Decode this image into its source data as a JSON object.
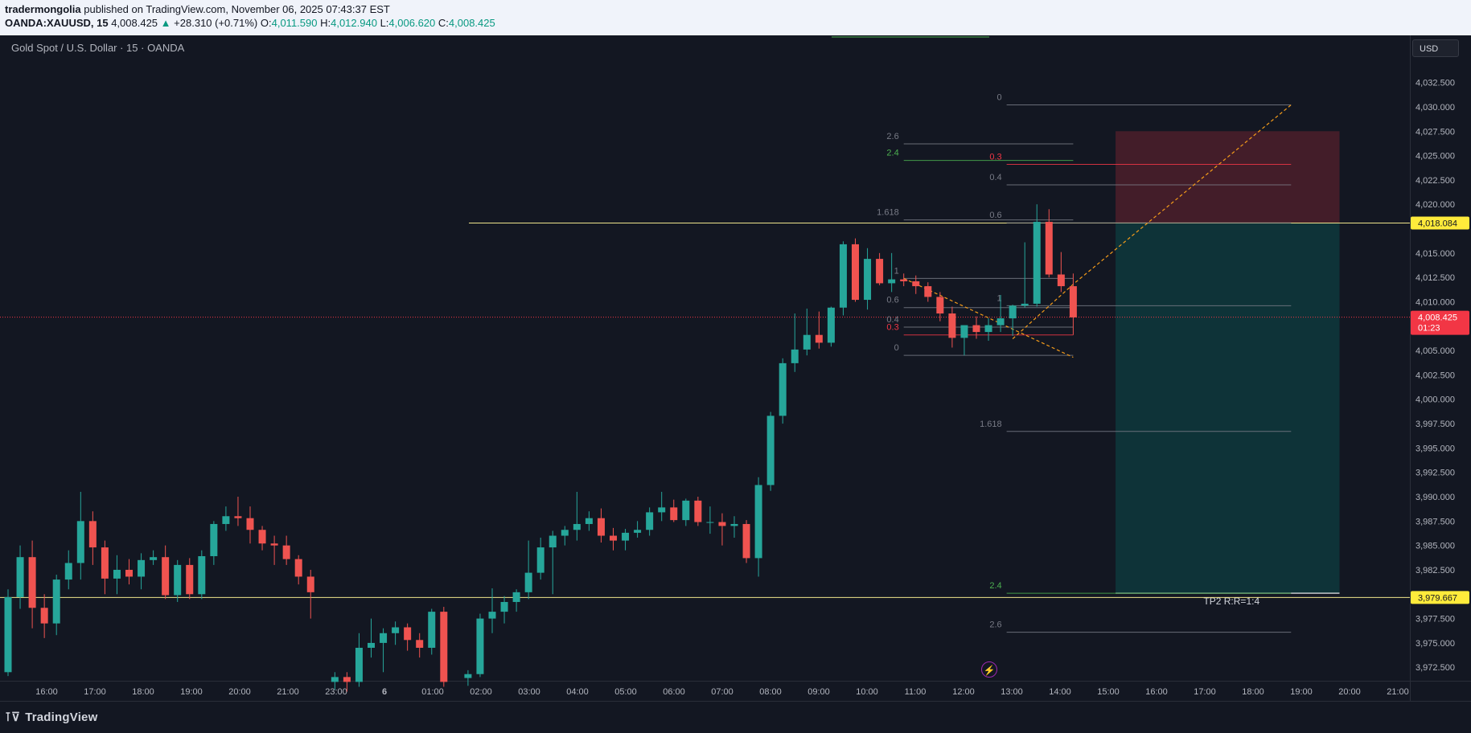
{
  "header": {
    "publisher": "tradermongolia",
    "published_text": "published on TradingView.com, November 06, 2025 07:43:37 EST",
    "symbol": "OANDA:XAUUSD, 15",
    "last": "4,008.425",
    "change_arrow": "▲",
    "change": "+28.310 (+0.71%)",
    "o_label": "O:",
    "open": "4,011.590",
    "h_label": "H:",
    "high": "4,012.940",
    "l_label": "L:",
    "low": "4,006.620",
    "c_label": "C:",
    "close": "4,008.425"
  },
  "chart_title": "Gold Spot / U.S. Dollar · 15 · OANDA",
  "currency_button": "USD",
  "footer": {
    "logo_text": "TradingView",
    "logo_mark": "⊺⊽",
    "flash_icon": "⚡"
  },
  "colors": {
    "background": "#131722",
    "up": "#26a69a",
    "down": "#ef5350",
    "level_line": "#f0e68c",
    "price_tag": "#ffeb3b",
    "current_tag": "#f23645",
    "risk_zone": "#f23645",
    "reward_zone": "#00897b",
    "fib_orange": "#f59c1a",
    "fib_green": "#4caf50",
    "fib_red": "#f23645",
    "fib_gray": "#787b86"
  },
  "chart_data": {
    "type": "candlestick",
    "title": "Gold Spot / U.S. Dollar · 15 · OANDA",
    "timeframe": "15",
    "x_tick_labels": [
      "16:00",
      "17:00",
      "18:00",
      "19:00",
      "20:00",
      "21:00",
      "23:00",
      "6",
      "01:00",
      "02:00",
      "03:00",
      "04:00",
      "05:00",
      "06:00",
      "07:00",
      "08:00",
      "09:00",
      "10:00",
      "11:00",
      "12:00",
      "13:00",
      "14:00",
      "15:00",
      "16:00",
      "17:00",
      "18:00",
      "19:00",
      "20:00",
      "21:00"
    ],
    "y_tick_values": [
      3972.5,
      3975,
      3977.5,
      3980,
      3982.5,
      3985,
      3987.5,
      3990,
      3992.5,
      3995,
      3997.5,
      4000,
      4002.5,
      4005,
      4007.5,
      4010,
      4012.5,
      4015,
      4017.5,
      4020,
      4022.5,
      4025,
      4027.5,
      4030,
      4032.5
    ],
    "y_tick_labels": [
      "3,972.500",
      "3,975.000",
      "3,977.500",
      "",
      "3,982.500",
      "3,985.000",
      "3,987.500",
      "3,990.000",
      "3,992.500",
      "3,995.000",
      "3,997.500",
      "4,000.000",
      "4,002.500",
      "4,005.000",
      "",
      "4,010.000",
      "4,012.500",
      "4,015.000",
      "",
      "4,020.000",
      "4,022.500",
      "4,025.000",
      "4,027.500",
      "4,030.000",
      "4,032.500"
    ],
    "ylim": [
      3971.2,
      4034.2
    ],
    "candles": [
      {
        "t": 0,
        "o": 3972,
        "h": 3980.5,
        "l": 3971.6,
        "c": 3979.7
      },
      {
        "t": 1,
        "o": 3979.7,
        "h": 3985,
        "l": 3978.5,
        "c": 3983.8
      },
      {
        "t": 2,
        "o": 3983.8,
        "h": 3985.5,
        "l": 3976.5,
        "c": 3978.6
      },
      {
        "t": 3,
        "o": 3978.6,
        "h": 3980,
        "l": 3975.5,
        "c": 3977
      },
      {
        "t": 4,
        "o": 3977,
        "h": 3982,
        "l": 3975.8,
        "c": 3981.5
      },
      {
        "t": 5,
        "o": 3981.5,
        "h": 3984.5,
        "l": 3980.5,
        "c": 3983.2
      },
      {
        "t": 6,
        "o": 3983.2,
        "h": 3990.5,
        "l": 3981.5,
        "c": 3987.5
      },
      {
        "t": 7,
        "o": 3987.5,
        "h": 3988.5,
        "l": 3983,
        "c": 3984.8
      },
      {
        "t": 8,
        "o": 3984.8,
        "h": 3985.5,
        "l": 3980,
        "c": 3981.6
      },
      {
        "t": 9,
        "o": 3981.6,
        "h": 3984,
        "l": 3980,
        "c": 3982.5
      },
      {
        "t": 10,
        "o": 3982.5,
        "h": 3983.6,
        "l": 3981,
        "c": 3981.8
      },
      {
        "t": 11,
        "o": 3981.8,
        "h": 3984.2,
        "l": 3980.5,
        "c": 3983.5
      },
      {
        "t": 12,
        "o": 3983.5,
        "h": 3984.5,
        "l": 3983,
        "c": 3983.8
      },
      {
        "t": 13,
        "o": 3983.8,
        "h": 3985,
        "l": 3979.5,
        "c": 3979.9
      },
      {
        "t": 14,
        "o": 3979.9,
        "h": 3983.5,
        "l": 3979.2,
        "c": 3983
      },
      {
        "t": 15,
        "o": 3983,
        "h": 3983.7,
        "l": 3979.5,
        "c": 3980
      },
      {
        "t": 16,
        "o": 3980,
        "h": 3984.5,
        "l": 3979.5,
        "c": 3983.9
      },
      {
        "t": 17,
        "o": 3983.9,
        "h": 3987.5,
        "l": 3983,
        "c": 3987.2
      },
      {
        "t": 18,
        "o": 3987.2,
        "h": 3989,
        "l": 3986.5,
        "c": 3988
      },
      {
        "t": 19,
        "o": 3988,
        "h": 3990,
        "l": 3987,
        "c": 3987.8
      },
      {
        "t": 20,
        "o": 3987.8,
        "h": 3989,
        "l": 3985.2,
        "c": 3986.6
      },
      {
        "t": 21,
        "o": 3986.6,
        "h": 3987,
        "l": 3984.5,
        "c": 3985.2
      },
      {
        "t": 22,
        "o": 3985.2,
        "h": 3986,
        "l": 3983,
        "c": 3985
      },
      {
        "t": 23,
        "o": 3985,
        "h": 3986,
        "l": 3983,
        "c": 3983.6
      },
      {
        "t": 24,
        "o": 3983.6,
        "h": 3984,
        "l": 3981,
        "c": 3981.8
      },
      {
        "t": 25,
        "o": 3981.8,
        "h": 3982.5,
        "l": 3977.5,
        "c": 3980.2
      },
      {
        "t": 27,
        "o": 3971,
        "h": 3972,
        "l": 3970.2,
        "c": 3971.5
      },
      {
        "t": 28,
        "o": 3971.5,
        "h": 3972,
        "l": 3970,
        "c": 3971
      },
      {
        "t": 29,
        "o": 3971,
        "h": 3976,
        "l": 3970.5,
        "c": 3974.5
      },
      {
        "t": 30,
        "o": 3974.5,
        "h": 3977.5,
        "l": 3973.5,
        "c": 3975
      },
      {
        "t": 31,
        "o": 3975,
        "h": 3976.5,
        "l": 3972,
        "c": 3976
      },
      {
        "t": 32,
        "o": 3976,
        "h": 3977.2,
        "l": 3974.8,
        "c": 3976.6
      },
      {
        "t": 33,
        "o": 3976.6,
        "h": 3977,
        "l": 3974.2,
        "c": 3975.3
      },
      {
        "t": 34,
        "o": 3975.3,
        "h": 3976,
        "l": 3973.5,
        "c": 3974.5
      },
      {
        "t": 35,
        "o": 3974.5,
        "h": 3978.5,
        "l": 3973.8,
        "c": 3978.2
      },
      {
        "t": 36,
        "o": 3978.2,
        "h": 3978.7,
        "l": 3970.5,
        "c": 3971
      },
      {
        "t": 38,
        "o": 3971.4,
        "h": 3972.2,
        "l": 3970.6,
        "c": 3971.8
      },
      {
        "t": 39,
        "o": 3971.8,
        "h": 3978,
        "l": 3971.5,
        "c": 3977.5
      },
      {
        "t": 40,
        "o": 3977.5,
        "h": 3980.6,
        "l": 3976,
        "c": 3978.2
      },
      {
        "t": 41,
        "o": 3978.2,
        "h": 3979.8,
        "l": 3977,
        "c": 3979.2
      },
      {
        "t": 42,
        "o": 3979.2,
        "h": 3980.5,
        "l": 3978.2,
        "c": 3980.2
      },
      {
        "t": 43,
        "o": 3980.2,
        "h": 3985.5,
        "l": 3979.5,
        "c": 3982.2
      },
      {
        "t": 44,
        "o": 3982.2,
        "h": 3985.8,
        "l": 3981.5,
        "c": 3984.8
      },
      {
        "t": 45,
        "o": 3984.8,
        "h": 3986.5,
        "l": 3980,
        "c": 3986
      },
      {
        "t": 46,
        "o": 3986,
        "h": 3987,
        "l": 3985,
        "c": 3986.6
      },
      {
        "t": 47,
        "o": 3986.6,
        "h": 3990.5,
        "l": 3985.5,
        "c": 3987.2
      },
      {
        "t": 48,
        "o": 3987.2,
        "h": 3988.5,
        "l": 3986.5,
        "c": 3987.8
      },
      {
        "t": 49,
        "o": 3987.8,
        "h": 3988.8,
        "l": 3985.3,
        "c": 3986
      },
      {
        "t": 50,
        "o": 3986,
        "h": 3986.8,
        "l": 3984.5,
        "c": 3985.5
      },
      {
        "t": 51,
        "o": 3985.5,
        "h": 3986.7,
        "l": 3984.5,
        "c": 3986.3
      },
      {
        "t": 52,
        "o": 3986.3,
        "h": 3987.5,
        "l": 3985.8,
        "c": 3986.6
      },
      {
        "t": 53,
        "o": 3986.6,
        "h": 3988.9,
        "l": 3986,
        "c": 3988.4
      },
      {
        "t": 54,
        "o": 3988.4,
        "h": 3990.5,
        "l": 3987.5,
        "c": 3988.9
      },
      {
        "t": 55,
        "o": 3988.9,
        "h": 3989.7,
        "l": 3987.4,
        "c": 3987.6
      },
      {
        "t": 56,
        "o": 3987.6,
        "h": 3989.8,
        "l": 3987,
        "c": 3989.6
      },
      {
        "t": 57,
        "o": 3989.6,
        "h": 3990,
        "l": 3987,
        "c": 3987.4
      },
      {
        "t": 58,
        "o": 3987.4,
        "h": 3989,
        "l": 3986.2,
        "c": 3987.4
      },
      {
        "t": 59,
        "o": 3987.4,
        "h": 3988.3,
        "l": 3985,
        "c": 3987
      },
      {
        "t": 60,
        "o": 3987,
        "h": 3988,
        "l": 3985.8,
        "c": 3987.2
      },
      {
        "t": 61,
        "o": 3987.2,
        "h": 3987.6,
        "l": 3983.2,
        "c": 3983.7
      },
      {
        "t": 62,
        "o": 3983.7,
        "h": 3992,
        "l": 3981.8,
        "c": 3991.2
      },
      {
        "t": 63,
        "o": 3991.2,
        "h": 3998.7,
        "l": 3990.6,
        "c": 3998.3
      },
      {
        "t": 64,
        "o": 3998.3,
        "h": 4004.2,
        "l": 3997.5,
        "c": 4003.7
      },
      {
        "t": 65,
        "o": 4003.7,
        "h": 4008.8,
        "l": 4002.8,
        "c": 4005.1
      },
      {
        "t": 66,
        "o": 4005.1,
        "h": 4009.3,
        "l": 4004.5,
        "c": 4006.6
      },
      {
        "t": 67,
        "o": 4006.6,
        "h": 4009,
        "l": 4005.2,
        "c": 4005.8
      },
      {
        "t": 68,
        "o": 4005.8,
        "h": 4009.5,
        "l": 4005.4,
        "c": 4009.4
      },
      {
        "t": 69,
        "o": 4009.4,
        "h": 4016.2,
        "l": 4008.6,
        "c": 4015.9
      },
      {
        "t": 70,
        "o": 4015.9,
        "h": 4016.5,
        "l": 4010,
        "c": 4010.2
      },
      {
        "t": 71,
        "o": 4010.2,
        "h": 4015.5,
        "l": 4009.2,
        "c": 4014.4
      },
      {
        "t": 72,
        "o": 4014.4,
        "h": 4015,
        "l": 4011.7,
        "c": 4011.9
      },
      {
        "t": 73,
        "o": 4011.9,
        "h": 4015,
        "l": 4011,
        "c": 4012.3
      },
      {
        "t": 74,
        "o": 4012.3,
        "h": 4012.9,
        "l": 4011.6,
        "c": 4012.1
      },
      {
        "t": 75,
        "o": 4012.1,
        "h": 4012.7,
        "l": 4010.8,
        "c": 4011.6
      },
      {
        "t": 76,
        "o": 4011.6,
        "h": 4012,
        "l": 4010,
        "c": 4010.5
      },
      {
        "t": 77,
        "o": 4010.5,
        "h": 4011,
        "l": 4008,
        "c": 4008.8
      },
      {
        "t": 78,
        "o": 4008.8,
        "h": 4009.5,
        "l": 4005.3,
        "c": 4006.3
      },
      {
        "t": 79,
        "o": 4006.3,
        "h": 4007.5,
        "l": 4004.5,
        "c": 4007.6
      },
      {
        "t": 80,
        "o": 4007.6,
        "h": 4008.5,
        "l": 4006.2,
        "c": 4006.9
      },
      {
        "t": 81,
        "o": 4006.9,
        "h": 4008.3,
        "l": 4006,
        "c": 4007.6
      },
      {
        "t": 82,
        "o": 4007.6,
        "h": 4010.7,
        "l": 4006.9,
        "c": 4008.3
      },
      {
        "t": 83,
        "o": 4008.3,
        "h": 4009.7,
        "l": 4006.5,
        "c": 4009.6
      },
      {
        "t": 84,
        "o": 4009.6,
        "h": 4016.1,
        "l": 4009.4,
        "c": 4009.8
      },
      {
        "t": 85,
        "o": 4009.8,
        "h": 4020,
        "l": 4009.5,
        "c": 4018.2
      },
      {
        "t": 86,
        "o": 4018.2,
        "h": 4019.5,
        "l": 4012.5,
        "c": 4012.8
      },
      {
        "t": 87,
        "o": 4012.8,
        "h": 4015.1,
        "l": 4011,
        "c": 4011.6
      },
      {
        "t": 88,
        "o": 4011.6,
        "h": 4012.9,
        "l": 4006.6,
        "c": 4008.4
      }
    ],
    "horizontal_levels": [
      {
        "price": 4018.084,
        "label": "4,018.084"
      },
      {
        "price": 3979.667,
        "label": "3,979.667"
      }
    ],
    "current_price": {
      "price": 4008.425,
      "label": "4,008.425",
      "countdown": "01:23"
    },
    "position_tool": {
      "entry": 4018.084,
      "stop": 4027.5,
      "target": 3980.1,
      "t_start": 91.5,
      "t_end": 110,
      "label": "TP2 R:R=1:4"
    },
    "fib_extension_left": {
      "t_start": 74,
      "t_end": 88,
      "levels": [
        {
          "ratio": "0",
          "price": 4004.5,
          "color": "gray"
        },
        {
          "ratio": "0.3",
          "price": 4006.6,
          "color": "red"
        },
        {
          "ratio": "0.4",
          "price": 4007.4,
          "color": "gray"
        },
        {
          "ratio": "0.6",
          "price": 4009.4,
          "color": "gray"
        },
        {
          "ratio": "1",
          "price": 4012.4,
          "color": "gray"
        },
        {
          "ratio": "1.618",
          "price": 4018.4,
          "color": "gray"
        },
        {
          "ratio": "2.4",
          "price": 4024.5,
          "color": "green"
        },
        {
          "ratio": "2.6",
          "price": 4026.2,
          "color": "gray"
        }
      ]
    },
    "fib_extension_right": {
      "t_start": 82.5,
      "t_end": 106,
      "levels": [
        {
          "ratio": "0",
          "price": 4030.2,
          "color": "gray"
        },
        {
          "ratio": "0.3",
          "price": 4024.1,
          "color": "red"
        },
        {
          "ratio": "0.4",
          "price": 4022,
          "color": "gray"
        },
        {
          "ratio": "0.6",
          "price": 4018.1,
          "color": "gray"
        },
        {
          "ratio": "1",
          "price": 4009.6,
          "color": "gray"
        },
        {
          "ratio": "1.618",
          "price": 3996.7,
          "color": "gray"
        },
        {
          "ratio": "2.4",
          "price": 3980.1,
          "color": "green"
        },
        {
          "ratio": "2.6",
          "price": 3976.1,
          "color": "gray"
        }
      ]
    }
  }
}
